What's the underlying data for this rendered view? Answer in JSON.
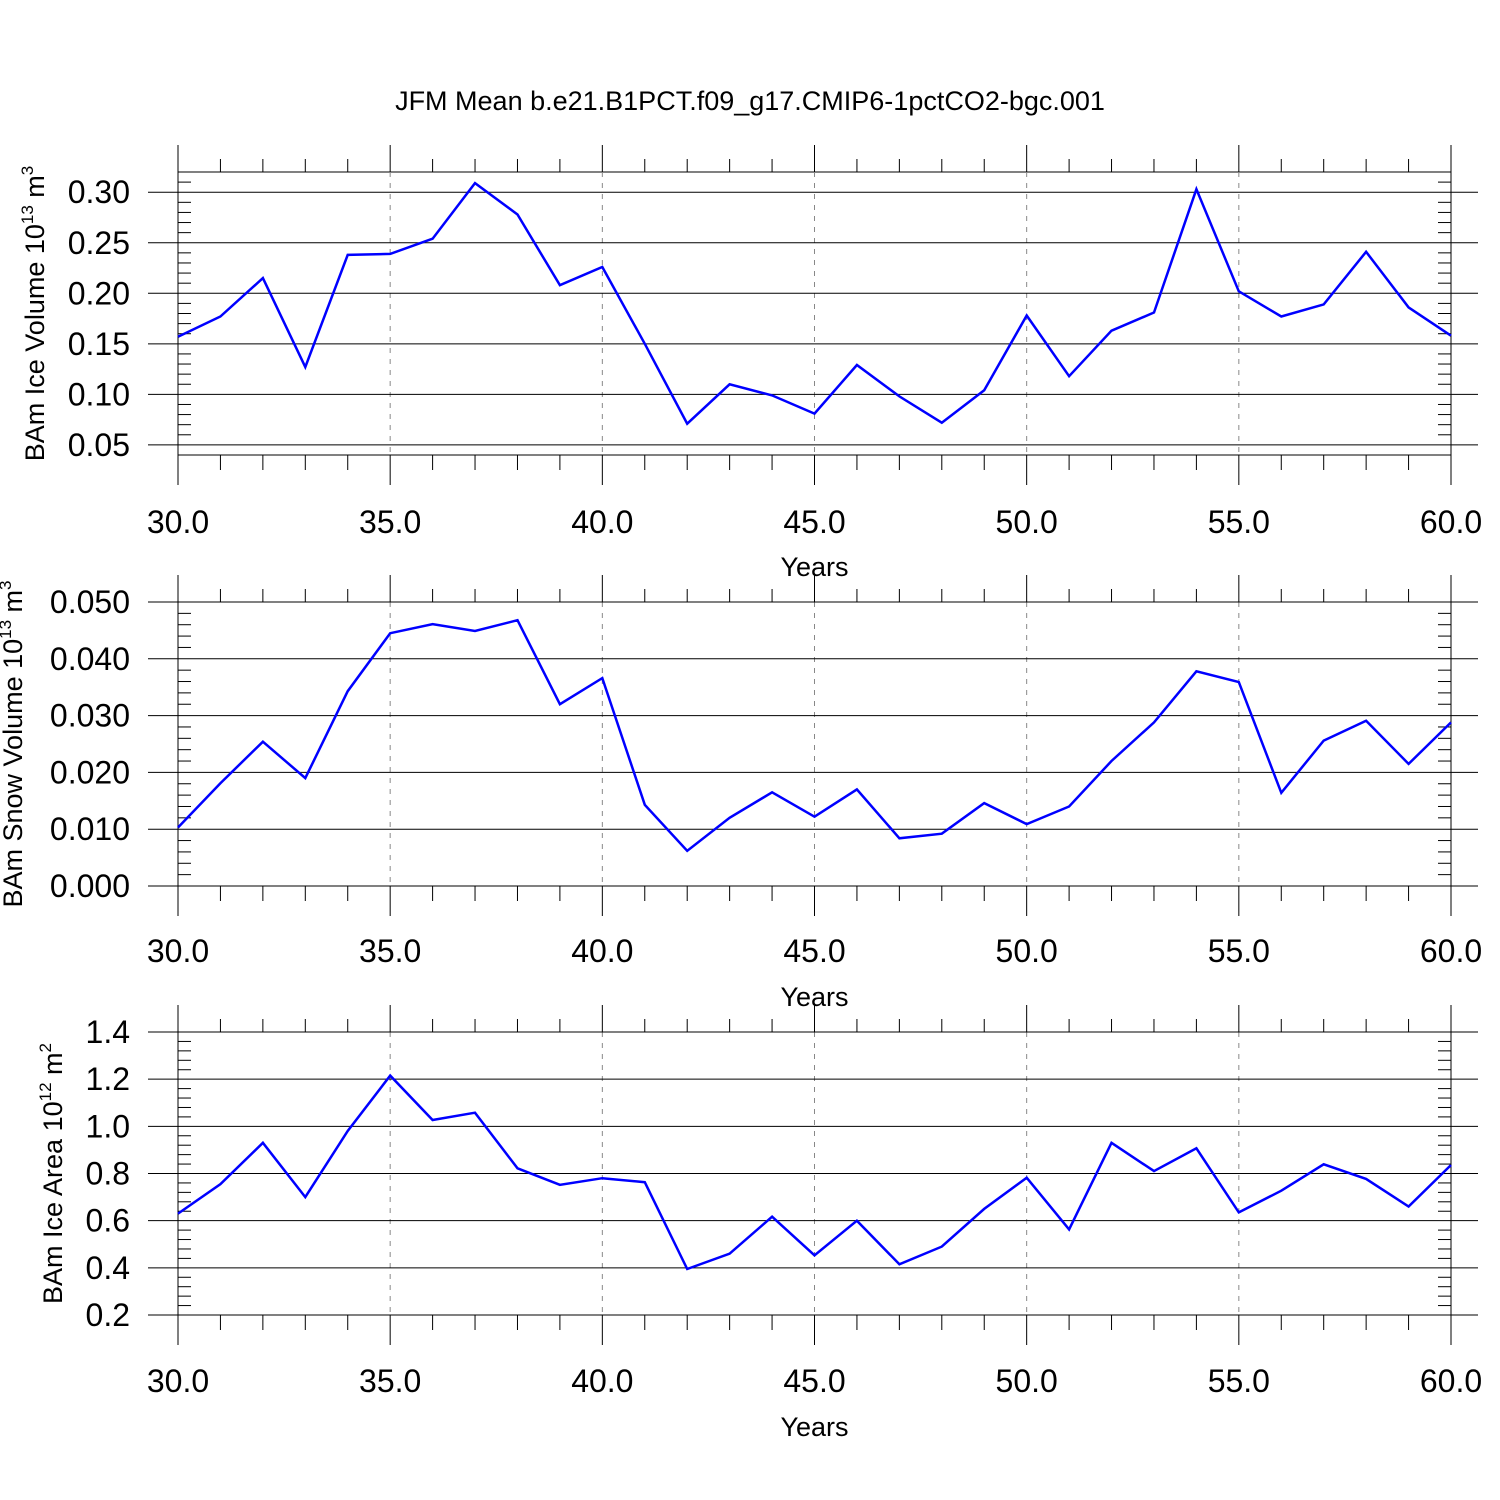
{
  "title": "JFM Mean b.e21.B1PCT.f09_g17.CMIP6-1pctCO2-bgc.001",
  "colors": {
    "line": "#0000ff",
    "axis": "#000000",
    "grid": "#888888",
    "background": "#ffffff"
  },
  "chart_data": [
    {
      "type": "line",
      "xlabel": "Years",
      "ylabel": {
        "main": "BAm Ice Volume 10",
        "sup": "13",
        "unit": " m",
        "unit_sup": "3"
      },
      "xlim": [
        30,
        60
      ],
      "ylim": [
        0.04,
        0.32
      ],
      "x_ticks": [
        30,
        35,
        40,
        45,
        50,
        55,
        60
      ],
      "x_tick_labels": [
        "30.0",
        "35.0",
        "40.0",
        "45.0",
        "50.0",
        "55.0",
        "60.0"
      ],
      "y_ticks": [
        0.05,
        0.1,
        0.15,
        0.2,
        0.25,
        0.3
      ],
      "y_tick_labels": [
        "0.05",
        "0.10",
        "0.15",
        "0.20",
        "0.25",
        "0.30"
      ],
      "y_minor_step": 0.01,
      "grid": "vertical dashed at major x ticks",
      "x": [
        30,
        31,
        32,
        33,
        34,
        35,
        36,
        37,
        38,
        39,
        40,
        41,
        42,
        43,
        44,
        45,
        46,
        47,
        48,
        49,
        50,
        51,
        52,
        53,
        54,
        55,
        56,
        57,
        58,
        59,
        60
      ],
      "y": [
        0.157,
        0.177,
        0.215,
        0.127,
        0.238,
        0.239,
        0.254,
        0.309,
        0.278,
        0.208,
        0.226,
        0.15,
        0.071,
        0.11,
        0.099,
        0.081,
        0.129,
        0.098,
        0.072,
        0.104,
        0.178,
        0.118,
        0.163,
        0.181,
        0.303,
        0.202,
        0.177,
        0.189,
        0.241,
        0.186,
        0.158
      ]
    },
    {
      "type": "line",
      "xlabel": "Years",
      "ylabel": {
        "main": "BAm Snow Volume 10",
        "sup": "13",
        "unit": " m",
        "unit_sup": "3"
      },
      "xlim": [
        30,
        60
      ],
      "ylim": [
        0.0,
        0.05
      ],
      "x_ticks": [
        30,
        35,
        40,
        45,
        50,
        55,
        60
      ],
      "x_tick_labels": [
        "30.0",
        "35.0",
        "40.0",
        "45.0",
        "50.0",
        "55.0",
        "60.0"
      ],
      "y_ticks": [
        0.0,
        0.01,
        0.02,
        0.03,
        0.04,
        0.05
      ],
      "y_tick_labels": [
        "0.000",
        "0.010",
        "0.020",
        "0.030",
        "0.040",
        "0.050"
      ],
      "y_minor_step": 0.002,
      "grid": "vertical dashed at major x ticks",
      "x": [
        30,
        31,
        32,
        33,
        34,
        35,
        36,
        37,
        38,
        39,
        40,
        41,
        42,
        43,
        44,
        45,
        46,
        47,
        48,
        49,
        50,
        51,
        52,
        53,
        54,
        55,
        56,
        57,
        58,
        59,
        60
      ],
      "y": [
        0.0103,
        0.0181,
        0.0254,
        0.019,
        0.0343,
        0.0445,
        0.0461,
        0.0449,
        0.0468,
        0.032,
        0.0366,
        0.0143,
        0.0062,
        0.012,
        0.0165,
        0.0122,
        0.017,
        0.0084,
        0.0092,
        0.0146,
        0.0109,
        0.014,
        0.022,
        0.0288,
        0.0378,
        0.0359,
        0.0164,
        0.0256,
        0.0291,
        0.0215,
        0.0288
      ]
    },
    {
      "type": "line",
      "xlabel": "Years",
      "ylabel": {
        "main": "BAm Ice Area 10",
        "sup": "12",
        "unit": " m",
        "unit_sup": "2"
      },
      "xlim": [
        30,
        60
      ],
      "ylim": [
        0.2,
        1.4
      ],
      "x_ticks": [
        30,
        35,
        40,
        45,
        50,
        55,
        60
      ],
      "x_tick_labels": [
        "30.0",
        "35.0",
        "40.0",
        "45.0",
        "50.0",
        "55.0",
        "60.0"
      ],
      "y_ticks": [
        0.2,
        0.4,
        0.6,
        0.8,
        1.0,
        1.2,
        1.4
      ],
      "y_tick_labels": [
        "0.2",
        "0.4",
        "0.6",
        "0.8",
        "1.0",
        "1.2",
        "1.4"
      ],
      "y_minor_step": 0.04,
      "grid": "vertical dashed at major x ticks",
      "x": [
        30,
        31,
        32,
        33,
        34,
        35,
        36,
        37,
        38,
        39,
        40,
        41,
        42,
        43,
        44,
        45,
        46,
        47,
        48,
        49,
        50,
        51,
        52,
        53,
        54,
        55,
        56,
        57,
        58,
        59,
        60
      ],
      "y": [
        0.63,
        0.755,
        0.93,
        0.7,
        0.98,
        1.215,
        1.027,
        1.058,
        0.822,
        0.752,
        0.78,
        0.763,
        0.395,
        0.46,
        0.617,
        0.453,
        0.6,
        0.415,
        0.49,
        0.65,
        0.782,
        0.563,
        0.93,
        0.81,
        0.907,
        0.635,
        0.727,
        0.839,
        0.777,
        0.66,
        0.836
      ]
    }
  ]
}
